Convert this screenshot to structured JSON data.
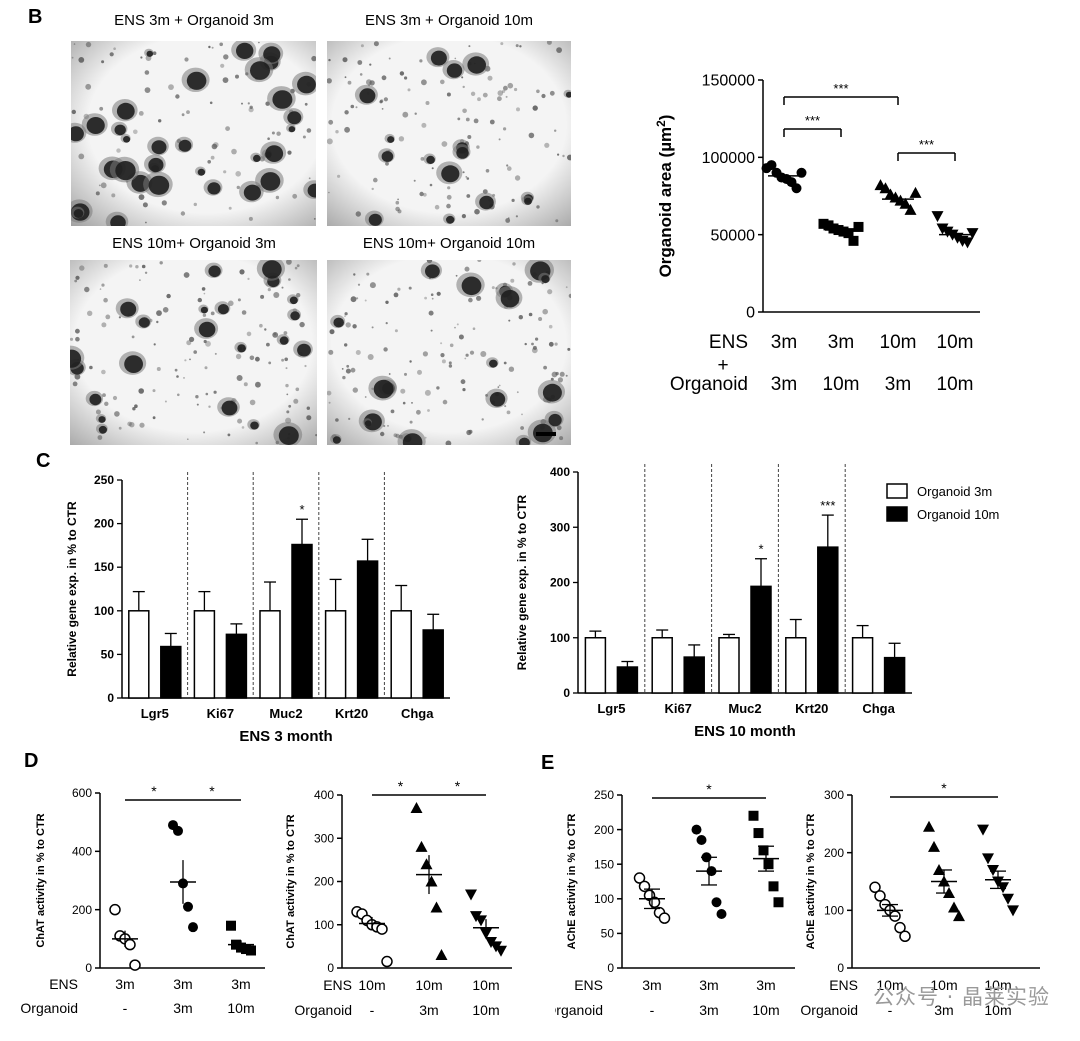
{
  "panels": {
    "b": "B",
    "c": "C",
    "d": "D",
    "e": "E"
  },
  "images": [
    {
      "title": "ENS 3m + Organoid 3m"
    },
    {
      "title": "ENS 3m + Organoid 10m"
    },
    {
      "title": "ENS 10m+ Organoid 3m"
    },
    {
      "title": "ENS 10m+ Organoid 10m"
    }
  ],
  "watermark": "公众号 · 晶莱实验",
  "chart_data": [
    {
      "id": "B-area",
      "type": "scatter",
      "ylabel": "Organoid area (µm²)",
      "ylim": [
        0,
        150000
      ],
      "yticks": [
        0,
        50000,
        100000,
        150000
      ],
      "row_labels": [
        "ENS",
        "+",
        "Organoid"
      ],
      "groups": [
        {
          "ens": "3m",
          "organoid": "3m",
          "marker": "circle",
          "mean": 88000,
          "values": [
            93000,
            95000,
            90000,
            87000,
            86000,
            84000,
            80000,
            90000
          ]
        },
        {
          "ens": "3m",
          "organoid": "10m",
          "marker": "square",
          "mean": 53000,
          "values": [
            57000,
            56000,
            54000,
            53000,
            52000,
            51000,
            46000,
            55000
          ]
        },
        {
          "ens": "10m",
          "organoid": "3m",
          "marker": "triangle-up",
          "mean": 73000,
          "values": [
            82000,
            80000,
            76000,
            74000,
            72000,
            70000,
            66000,
            77000
          ]
        },
        {
          "ens": "10m",
          "organoid": "10m",
          "marker": "triangle-down",
          "mean": 50000,
          "values": [
            62000,
            54000,
            52000,
            50000,
            48000,
            46000,
            45000,
            51000
          ]
        }
      ],
      "significance": [
        {
          "from": 0,
          "to": 2,
          "label": "***"
        },
        {
          "from": 0,
          "to": 1,
          "label": "***"
        },
        {
          "from": 2,
          "to": 3,
          "label": "***"
        }
      ]
    },
    {
      "id": "C-3m",
      "type": "bar",
      "xlabel": "ENS 3 month",
      "ylabel": "Relative gene exp. in % to CTR",
      "ylim": [
        0,
        250
      ],
      "yticks": [
        0,
        50,
        100,
        150,
        200,
        250
      ],
      "categories": [
        "Lgr5",
        "Ki67",
        "Muc2",
        "Krt20",
        "Chga"
      ],
      "series": [
        {
          "name": "Organoid 3m",
          "fill": "#ffffff",
          "values": [
            100,
            100,
            100,
            100,
            100
          ],
          "errors": [
            22,
            22,
            33,
            36,
            29
          ]
        },
        {
          "name": "Organoid 10m",
          "fill": "#000000",
          "values": [
            59,
            73,
            176,
            157,
            78
          ],
          "errors": [
            15,
            12,
            29,
            25,
            18
          ]
        }
      ],
      "stars": [
        "",
        "",
        "*",
        "",
        ""
      ]
    },
    {
      "id": "C-10m",
      "type": "bar",
      "xlabel": "ENS 10 month",
      "ylabel": "Relative gene exp. in % to CTR",
      "ylim": [
        0,
        400
      ],
      "yticks": [
        0,
        100,
        200,
        300,
        400
      ],
      "categories": [
        "Lgr5",
        "Ki67",
        "Muc2",
        "Krt20",
        "Chga"
      ],
      "series": [
        {
          "name": "Organoid 3m",
          "fill": "#ffffff",
          "values": [
            100,
            100,
            100,
            100,
            100
          ],
          "errors": [
            12,
            14,
            6,
            33,
            22
          ]
        },
        {
          "name": "Organoid 10m",
          "fill": "#000000",
          "values": [
            47,
            65,
            193,
            264,
            64
          ],
          "errors": [
            10,
            22,
            50,
            58,
            26
          ]
        }
      ],
      "stars": [
        "",
        "",
        "*",
        "***",
        ""
      ],
      "legend": {
        "placement": "top-right",
        "entries": [
          "Organoid 3m",
          "Organoid 10m"
        ]
      }
    },
    {
      "id": "D-3m",
      "type": "scatter",
      "ylabel": "ChAT activity in % to CTR",
      "ylim": [
        0,
        600
      ],
      "yticks": [
        0,
        200,
        400,
        600
      ],
      "row_labels": [
        "ENS",
        "Organoid"
      ],
      "groups": [
        {
          "ens": "3m",
          "organoid": "-",
          "marker": "open-circle",
          "mean": 100,
          "sem": 28,
          "values": [
            200,
            110,
            100,
            80,
            10
          ]
        },
        {
          "ens": "3m",
          "organoid": "3m",
          "marker": "circle",
          "mean": 295,
          "sem": 75,
          "values": [
            490,
            470,
            290,
            210,
            140
          ]
        },
        {
          "ens": "3m",
          "organoid": "10m",
          "marker": "square",
          "mean": 80,
          "sem": 15,
          "values": [
            145,
            80,
            70,
            65,
            60
          ]
        }
      ],
      "significance": [
        {
          "from": 0,
          "to": 1,
          "label": "*"
        },
        {
          "from": 1,
          "to": 2,
          "label": "*"
        }
      ]
    },
    {
      "id": "D-10m",
      "type": "scatter",
      "ylabel": "ChAT activity in % to CTR",
      "ylim": [
        0,
        400
      ],
      "yticks": [
        0,
        100,
        200,
        300,
        400
      ],
      "row_labels": [
        "ENS",
        "Organoid"
      ],
      "groups": [
        {
          "ens": "10m",
          "organoid": "-",
          "marker": "open-circle",
          "mean": 103,
          "sem": 15,
          "values": [
            130,
            125,
            110,
            100,
            95,
            90,
            15
          ]
        },
        {
          "ens": "10m",
          "organoid": "3m",
          "marker": "triangle-up",
          "mean": 216,
          "sem": 45,
          "values": [
            370,
            280,
            240,
            200,
            140,
            30
          ]
        },
        {
          "ens": "10m",
          "organoid": "10m",
          "marker": "triangle-down",
          "mean": 93,
          "sem": 20,
          "values": [
            170,
            120,
            110,
            80,
            60,
            50,
            40
          ]
        }
      ],
      "significance": [
        {
          "from": 0,
          "to": 1,
          "label": "*"
        },
        {
          "from": 1,
          "to": 2,
          "label": "*"
        }
      ]
    },
    {
      "id": "E-3m",
      "type": "scatter",
      "ylabel": "AChE activity in % to CTR",
      "ylim": [
        0,
        250
      ],
      "yticks": [
        0,
        50,
        100,
        150,
        200,
        250
      ],
      "row_labels": [
        "ENS",
        "Organoid"
      ],
      "groups": [
        {
          "ens": "3m",
          "organoid": "-",
          "marker": "open-circle",
          "mean": 100,
          "sem": 14,
          "values": [
            130,
            118,
            105,
            95,
            80,
            72
          ]
        },
        {
          "ens": "3m",
          "organoid": "3m",
          "marker": "circle",
          "mean": 140,
          "sem": 20,
          "values": [
            200,
            185,
            160,
            140,
            95,
            78
          ]
        },
        {
          "ens": "3m",
          "organoid": "10m",
          "marker": "square",
          "mean": 158,
          "sem": 18,
          "values": [
            220,
            195,
            170,
            150,
            118,
            95
          ]
        }
      ],
      "significance": [
        {
          "from": 0,
          "to": 2,
          "label": "*"
        }
      ]
    },
    {
      "id": "E-10m",
      "type": "scatter",
      "ylabel": "AChE activity in % to CTR",
      "ylim": [
        0,
        300
      ],
      "yticks": [
        0,
        100,
        200,
        300
      ],
      "row_labels": [
        "ENS",
        "Organoid"
      ],
      "groups": [
        {
          "ens": "10m",
          "organoid": "-",
          "marker": "open-circle",
          "mean": 100,
          "sem": 10,
          "values": [
            140,
            125,
            110,
            100,
            90,
            70,
            55
          ]
        },
        {
          "ens": "10m",
          "organoid": "3m",
          "marker": "triangle-up",
          "mean": 150,
          "sem": 20,
          "values": [
            245,
            210,
            170,
            150,
            130,
            105,
            90
          ]
        },
        {
          "ens": "10m",
          "organoid": "10m",
          "marker": "triangle-down",
          "mean": 153,
          "sem": 15,
          "values": [
            240,
            190,
            170,
            150,
            140,
            120,
            100
          ]
        }
      ],
      "significance": [
        {
          "from": 0,
          "to": 2,
          "label": "*"
        }
      ]
    }
  ]
}
